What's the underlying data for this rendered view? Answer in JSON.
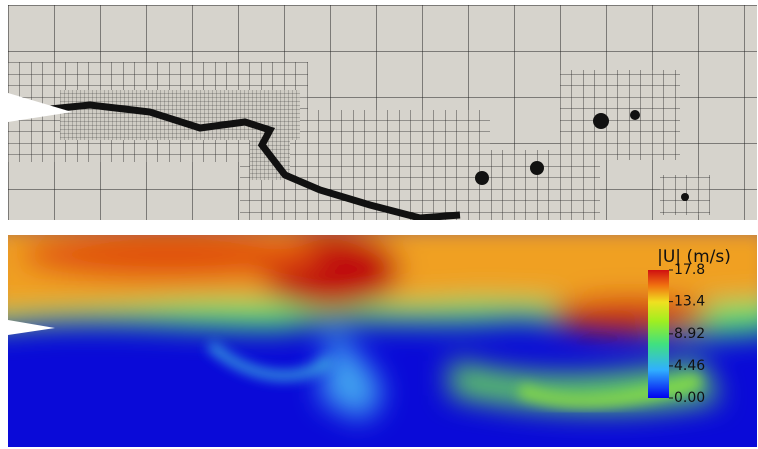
{
  "colorbar": {
    "title": "|U| (m/s)",
    "range": [
      0,
      17.8
    ],
    "ticks": [
      {
        "value": 0,
        "label": "0.00"
      },
      4.46,
      8.92,
      13.4,
      17.8
    ]
  }
}
